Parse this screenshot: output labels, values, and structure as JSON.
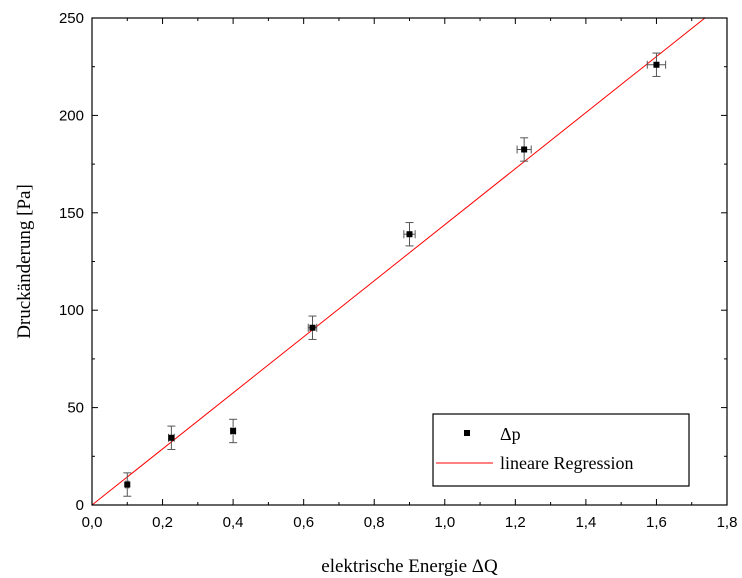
{
  "chart_data": {
    "type": "scatter",
    "title": "",
    "xlabel": "elektrische Energie ΔQ",
    "ylabel": "Druckänderung [Pa]",
    "xlim": [
      0.0,
      1.8
    ],
    "ylim": [
      0,
      250
    ],
    "x_ticks": [
      "0,0",
      "0,2",
      "0,4",
      "0,6",
      "0,8",
      "1,0",
      "1,2",
      "1,4",
      "1,6",
      "1,8"
    ],
    "y_ticks": [
      "0",
      "50",
      "100",
      "150",
      "200",
      "250"
    ],
    "grid": false,
    "legend_position": "bottom-right",
    "series": [
      {
        "name": "Δp",
        "type": "scatter",
        "marker": "square",
        "color": "#000000",
        "points": [
          {
            "x": 0.1,
            "y": 10.5,
            "yerr": 6,
            "xerr": 0.004
          },
          {
            "x": 0.225,
            "y": 34.5,
            "yerr": 6,
            "xerr": 0.008
          },
          {
            "x": 0.4,
            "y": 38.0,
            "yerr": 6,
            "xerr": 0.006
          },
          {
            "x": 0.625,
            "y": 91.0,
            "yerr": 6,
            "xerr": 0.012
          },
          {
            "x": 0.9,
            "y": 139.0,
            "yerr": 6,
            "xerr": 0.016
          },
          {
            "x": 1.225,
            "y": 182.5,
            "yerr": 6,
            "xerr": 0.02
          },
          {
            "x": 1.6,
            "y": 226.0,
            "yerr": 6,
            "xerr": 0.026
          }
        ]
      },
      {
        "name": "lineare Regression",
        "type": "line",
        "color": "#ff0000",
        "x": [
          0.0,
          1.7375
        ],
        "y": [
          0.0,
          250.0
        ]
      }
    ]
  }
}
